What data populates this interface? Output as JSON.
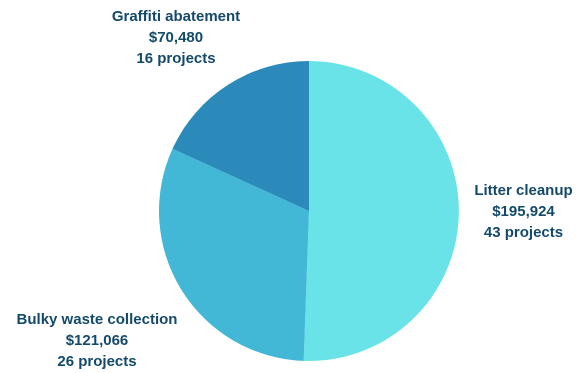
{
  "chart_data": {
    "type": "pie",
    "title": "",
    "slices": [
      {
        "name": "Litter cleanup",
        "value": 195924,
        "value_label": "$195,924",
        "projects_label": "43 projects",
        "color": "#6ae3e8"
      },
      {
        "name": "Bulky waste collection",
        "value": 121066,
        "value_label": "$121,066",
        "projects_label": "26 projects",
        "color": "#43b7d6"
      },
      {
        "name": "Graffiti abatement",
        "value": 70480,
        "value_label": "$70,480",
        "projects_label": "16 projects",
        "color": "#2c8abb"
      }
    ],
    "start_angle_deg": 0,
    "direction": "clockwise",
    "label_color": "#134a6b"
  }
}
